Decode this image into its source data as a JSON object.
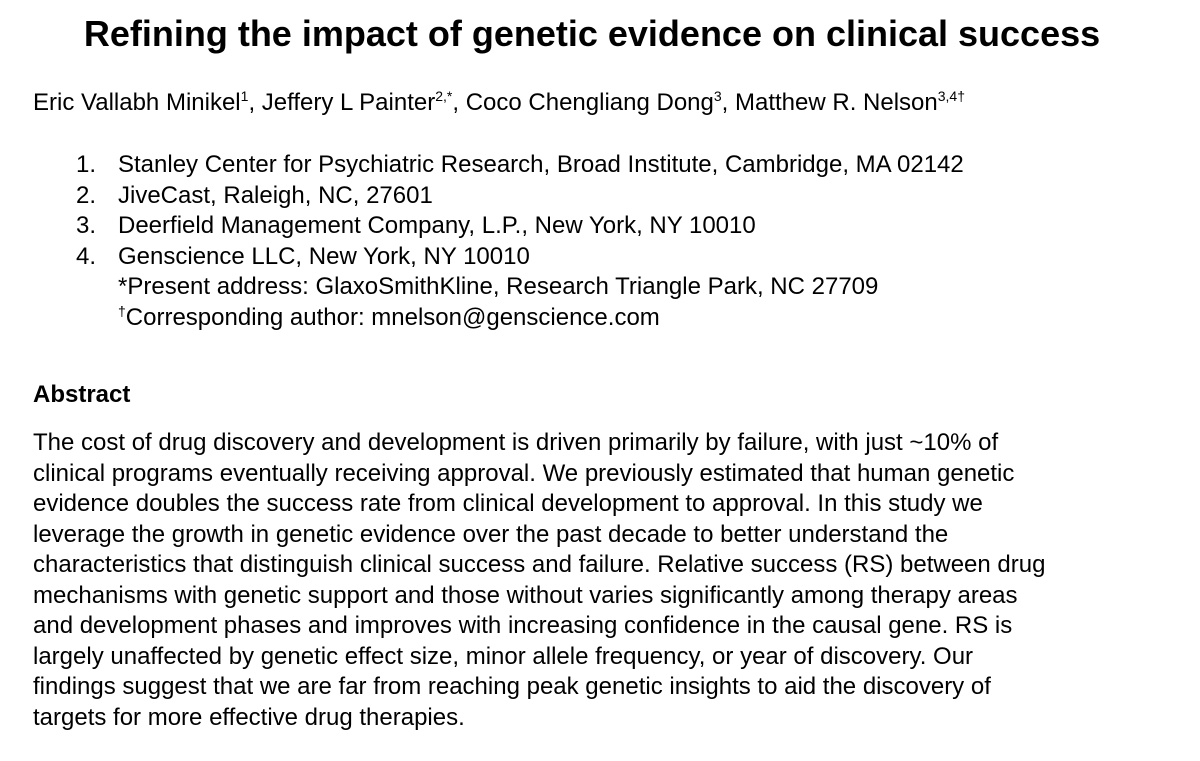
{
  "paper": {
    "title": "Refining the impact of genetic evidence on clinical success",
    "authors": [
      {
        "name": "Eric Vallabh Minikel",
        "sup": "1"
      },
      {
        "name": "Jeffery L Painter",
        "sup": "2,*"
      },
      {
        "name": "Coco Chengliang Dong",
        "sup": "3"
      },
      {
        "name": "Matthew R. Nelson",
        "sup": "3,4†"
      }
    ],
    "author_separator": ", ",
    "affiliations": [
      {
        "num": "1.",
        "text": "Stanley Center for Psychiatric Research, Broad Institute, Cambridge, MA 02142"
      },
      {
        "num": "2.",
        "text": "JiveCast, Raleigh, NC, 27601"
      },
      {
        "num": "3.",
        "text": "Deerfield Management Company, L.P., New York, NY 10010"
      },
      {
        "num": "4.",
        "text": "Genscience LLC, New York, NY 10010"
      }
    ],
    "notes": {
      "present_address": "*Present address: GlaxoSmithKline, Research Triangle Park, NC 27709",
      "corresponding_mark": "†",
      "corresponding": "Corresponding author: mnelson@genscience.com"
    },
    "abstract": {
      "heading": "Abstract",
      "lines": [
        "The cost of drug discovery and development is driven primarily by failure, with just ~10% of",
        "clinical programs eventually receiving approval. We previously estimated that human genetic",
        "evidence doubles the success rate from clinical development to approval. In this study we",
        "leverage the growth in genetic evidence over the past decade to better understand the",
        "characteristics that distinguish clinical success and failure. Relative success (RS) between drug",
        "mechanisms with genetic support and those without varies significantly among therapy areas",
        "and development phases and improves with increasing confidence in the causal gene. RS is",
        "largely unaffected by genetic effect size, minor allele frequency, or year of discovery. Our",
        "findings suggest that we are far from reaching peak genetic insights to aid the discovery of",
        "targets for more effective drug therapies."
      ]
    }
  }
}
